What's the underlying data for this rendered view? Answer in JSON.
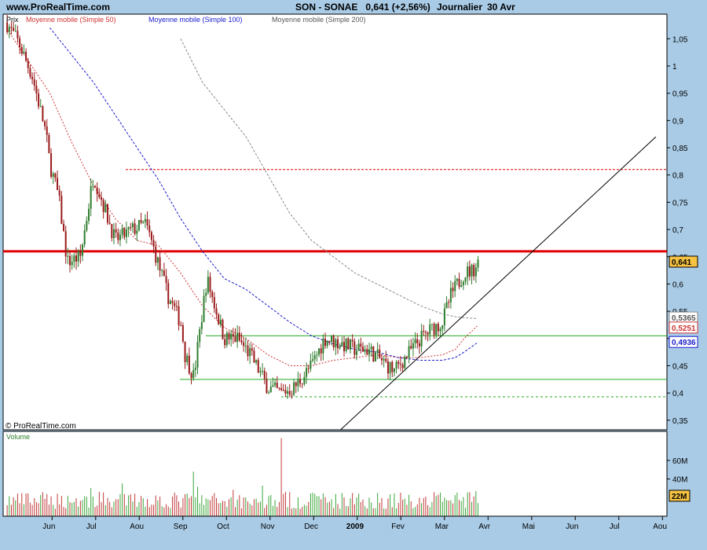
{
  "header": {
    "site": "www.ProRealTime.com",
    "title": "SON - SONAE   0,641 (+2,56%)",
    "period": "Journalier",
    "date": "30 Avr"
  },
  "legend": {
    "price": "Prix",
    "ma50": "Moyenne mobile (Simple 50)",
    "ma100": "Moyenne mobile (Simple 100)",
    "ma200": "Moyenne mobile (Simple 200)"
  },
  "copyright": "© ProRealTime.com",
  "volume_label": "Volume",
  "colors": {
    "background": "#a9cbe6",
    "up": "#2e7d2e",
    "down": "#9a1a1a",
    "ma50": "#cc3333",
    "ma100": "#1a1acc",
    "ma200": "#888888",
    "resistance": "#e00000",
    "support": "#22aa22",
    "trendline": "#000000",
    "last_price_badge": "#f5c242"
  },
  "chart_data": [
    {
      "type": "candlestick",
      "title": "SON - SONAE",
      "ylabel": "Prix",
      "ylim": [
        0.32,
        1.1
      ],
      "x_ticks": [
        "Jun",
        "Jul",
        "Aou",
        "Sep",
        "Oct",
        "Nov",
        "Dec",
        "2009",
        "Fev",
        "Mar",
        "Avr",
        "Mai",
        "Jun",
        "Jul",
        "Aou"
      ],
      "y_ticks": [
        "1,05",
        "1",
        "0,95",
        "0,9",
        "0,85",
        "0,8",
        "0,75",
        "0,7",
        "0,65",
        "0,6",
        "0,55",
        "0,5",
        "0,45",
        "0,4",
        "0,35"
      ],
      "close_path": {
        "months": [
          0,
          0.3,
          0.6,
          0.9,
          1.0,
          1.2,
          1.4,
          1.7,
          2.0,
          2.5,
          2.9,
          3.2,
          3.4,
          3.7,
          4.0,
          4.1,
          4.3,
          4.6,
          5.0,
          5.3,
          5.6,
          6.0,
          6.3,
          6.6,
          7.0,
          7.3,
          7.7,
          8.0,
          8.3,
          8.6,
          8.9,
          9.2,
          9.5,
          9.8,
          10.0,
          10.2,
          10.5,
          10.7,
          10.83
        ],
        "values": [
          1.08,
          1.04,
          0.98,
          0.88,
          0.82,
          0.76,
          0.64,
          0.65,
          0.8,
          0.68,
          0.7,
          0.71,
          0.66,
          0.58,
          0.53,
          0.47,
          0.43,
          0.61,
          0.5,
          0.5,
          0.47,
          0.41,
          0.4,
          0.41,
          0.45,
          0.5,
          0.49,
          0.48,
          0.48,
          0.46,
          0.44,
          0.47,
          0.5,
          0.52,
          0.53,
          0.58,
          0.62,
          0.625,
          0.641
        ]
      },
      "last_price": "0,641",
      "moving_averages": [
        {
          "name": "Moyenne mobile (Simple 50)",
          "last": "0,5251",
          "months": [
            0,
            1,
            1.5,
            2,
            2.5,
            3,
            3.5,
            4,
            4.5,
            5,
            5.5,
            6,
            6.5,
            7,
            7.5,
            8,
            8.5,
            9,
            9.5,
            10,
            10.3,
            10.5,
            10.83
          ],
          "values": [
            1.07,
            0.95,
            0.86,
            0.78,
            0.72,
            0.68,
            0.67,
            0.62,
            0.56,
            0.52,
            0.5,
            0.47,
            0.45,
            0.45,
            0.46,
            0.465,
            0.47,
            0.465,
            0.465,
            0.47,
            0.48,
            0.5,
            0.5251
          ]
        },
        {
          "name": "Moyenne mobile (Simple 100)",
          "last": "0,4936",
          "months": [
            1,
            1.5,
            2,
            2.5,
            3,
            3.5,
            4,
            4.5,
            5,
            5.5,
            6,
            6.5,
            7,
            7.5,
            8,
            8.5,
            9,
            9.5,
            10,
            10.3,
            10.5,
            10.83
          ],
          "values": [
            1.07,
            1.02,
            0.97,
            0.91,
            0.85,
            0.79,
            0.72,
            0.66,
            0.61,
            0.59,
            0.56,
            0.53,
            0.505,
            0.49,
            0.48,
            0.475,
            0.465,
            0.46,
            0.46,
            0.465,
            0.475,
            0.4936
          ]
        },
        {
          "name": "Moyenne mobile (Simple 200)",
          "last": "0,5365",
          "months": [
            4,
            4.5,
            5,
            5.5,
            6,
            6.5,
            7,
            7.5,
            8,
            8.5,
            9,
            9.5,
            10,
            10.3,
            10.5,
            10.83
          ],
          "values": [
            1.05,
            0.97,
            0.92,
            0.87,
            0.8,
            0.73,
            0.68,
            0.65,
            0.62,
            0.6,
            0.58,
            0.56,
            0.545,
            0.54,
            0.538,
            0.5365
          ]
        }
      ],
      "horizontal_levels": [
        {
          "value": 0.66,
          "style": "thick-red"
        },
        {
          "value": 0.81,
          "style": "dashed-red"
        },
        {
          "value": 0.505,
          "style": "green"
        },
        {
          "value": 0.425,
          "style": "green"
        },
        {
          "value": 0.393,
          "style": "dotted-green"
        }
      ],
      "trendline": {
        "from": [
          7.5,
          0.32
        ],
        "to": [
          14.9,
          0.87
        ]
      }
    },
    {
      "type": "bar",
      "ylabel": "Volume",
      "y_ticks": [
        "60M",
        "40M"
      ],
      "last_volume": "22M"
    }
  ]
}
